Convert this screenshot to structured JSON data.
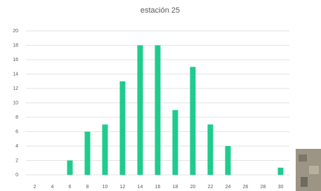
{
  "chart_data": {
    "type": "bar",
    "title": "estación 25",
    "categories": [
      2,
      4,
      6,
      8,
      10,
      12,
      14,
      16,
      18,
      20,
      22,
      24,
      26,
      28,
      30
    ],
    "values": [
      0,
      0,
      2,
      6,
      7,
      13,
      18,
      18,
      9,
      15,
      7,
      4,
      0,
      0,
      1
    ],
    "color": "#1fcb8e",
    "ylim": [
      0,
      20
    ],
    "yticks": [
      0,
      2,
      4,
      6,
      8,
      10,
      12,
      14,
      16,
      18,
      20
    ],
    "grid": true
  }
}
